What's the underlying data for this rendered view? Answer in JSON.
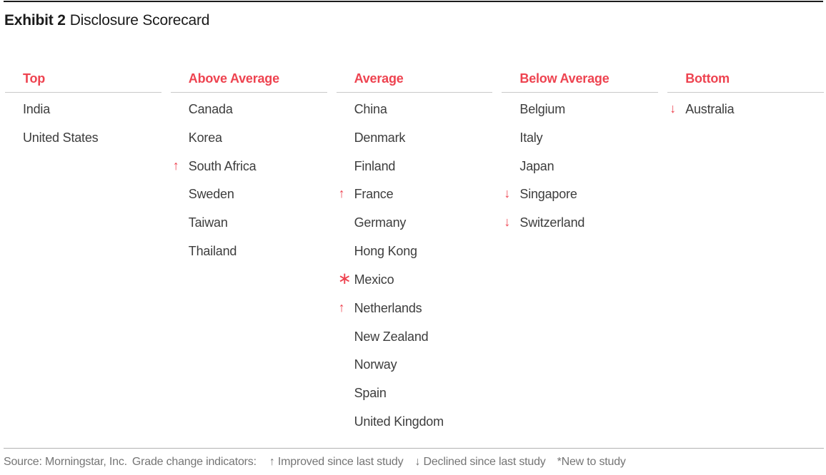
{
  "title": {
    "prefix": "Exhibit 2",
    "text": "Disclosure Scorecard"
  },
  "colors": {
    "accent_red": "#ee4350",
    "body_text": "#3d3d3d",
    "muted_text": "#757575",
    "rule_dark": "#1b1b1b",
    "rule_light": "#c9c9c9"
  },
  "symbols": {
    "up": "↑",
    "down": "↓",
    "new": "∗"
  },
  "scorecard": {
    "columns": [
      {
        "header": "Top",
        "entries": [
          {
            "name": "India"
          },
          {
            "name": "United States"
          }
        ]
      },
      {
        "header": "Above Average",
        "entries": [
          {
            "name": "Canada"
          },
          {
            "name": "Korea"
          },
          {
            "name": "South Africa",
            "indicator": "up"
          },
          {
            "name": "Sweden"
          },
          {
            "name": "Taiwan"
          },
          {
            "name": "Thailand"
          }
        ]
      },
      {
        "header": "Average",
        "entries": [
          {
            "name": "China"
          },
          {
            "name": "Denmark"
          },
          {
            "name": "Finland"
          },
          {
            "name": "France",
            "indicator": "up"
          },
          {
            "name": "Germany"
          },
          {
            "name": "Hong Kong"
          },
          {
            "name": "Mexico",
            "indicator": "new"
          },
          {
            "name": "Netherlands",
            "indicator": "up"
          },
          {
            "name": "New Zealand"
          },
          {
            "name": "Norway"
          },
          {
            "name": "Spain"
          },
          {
            "name": "United Kingdom"
          }
        ]
      },
      {
        "header": "Below Average",
        "entries": [
          {
            "name": "Belgium"
          },
          {
            "name": "Italy"
          },
          {
            "name": "Japan"
          },
          {
            "name": "Singapore",
            "indicator": "down"
          },
          {
            "name": "Switzerland",
            "indicator": "down"
          }
        ]
      },
      {
        "header": "Bottom",
        "entries": [
          {
            "name": "Australia",
            "indicator": "down"
          }
        ]
      }
    ]
  },
  "footer": {
    "source": "Source: Morningstar, Inc.",
    "label": "Grade change indicators:",
    "legend": [
      "↑ Improved since last study",
      "↓ Declined since last study",
      "*New to study"
    ]
  }
}
